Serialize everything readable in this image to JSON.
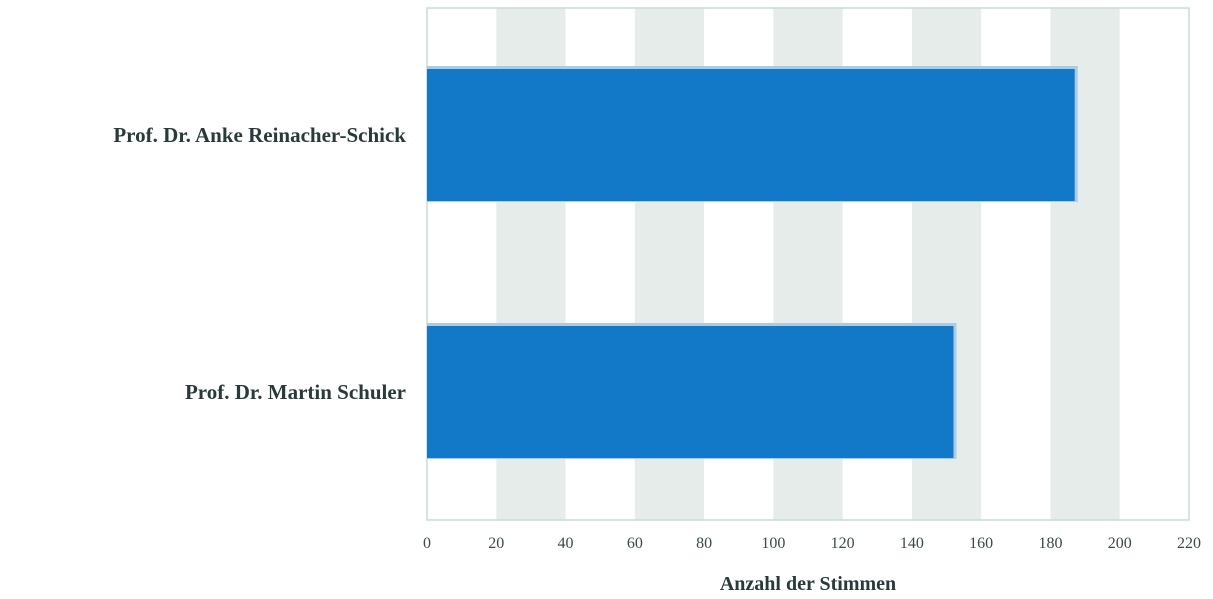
{
  "chart_data": {
    "type": "bar",
    "orientation": "horizontal",
    "categories": [
      "Prof. Dr. Anke Reinacher-Schick",
      "Prof. Dr. Martin Schuler"
    ],
    "values": [
      187,
      152
    ],
    "title": "",
    "xlabel": "Anzahl der Stimmen",
    "ylabel": "",
    "xlim": [
      0,
      220
    ],
    "xticks": [
      0,
      20,
      40,
      60,
      80,
      100,
      120,
      140,
      160,
      180,
      200,
      220
    ],
    "grid": "alternating vertical bands",
    "legend": "none",
    "colors": {
      "bar": "#1279c8",
      "band": "#e6ecea",
      "frame": "#c9dcdc"
    }
  }
}
